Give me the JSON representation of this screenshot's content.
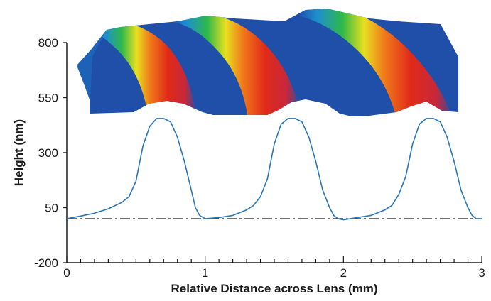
{
  "chart_data": {
    "type": "line",
    "title": "",
    "xlabel": "Relative Distance across Lens (mm)",
    "ylabel": "Height (nm)",
    "xlim": [
      0,
      3
    ],
    "ylim": [
      -200,
      800
    ],
    "x_ticks": [
      "0",
      "1",
      "2",
      "3"
    ],
    "y_ticks": [
      "800",
      "550",
      "300",
      "50",
      "-200"
    ],
    "y_tick_values": [
      800,
      550,
      300,
      50,
      -200
    ],
    "baseline": {
      "y": 0,
      "style": "dash-dot"
    },
    "grid": false,
    "legend": "none",
    "series": [
      {
        "color": "#2a76b8",
        "x": [
          0.0,
          0.1,
          0.2,
          0.3,
          0.4,
          0.45,
          0.5,
          0.55,
          0.6,
          0.65,
          0.7,
          0.75,
          0.8,
          0.85,
          0.9,
          0.93,
          0.96,
          1.0,
          1.1,
          1.2,
          1.3,
          1.35,
          1.4,
          1.45,
          1.5,
          1.55,
          1.6,
          1.65,
          1.7,
          1.75,
          1.8,
          1.85,
          1.9,
          1.93,
          1.96,
          2.0,
          2.1,
          2.2,
          2.3,
          2.35,
          2.4,
          2.45,
          2.5,
          2.55,
          2.6,
          2.65,
          2.7,
          2.75,
          2.8,
          2.85,
          2.9,
          2.93,
          2.96,
          3.0
        ],
        "y": [
          0,
          12,
          25,
          45,
          75,
          100,
          170,
          330,
          420,
          455,
          455,
          440,
          370,
          260,
          130,
          50,
          15,
          0,
          5,
          15,
          40,
          60,
          100,
          180,
          340,
          430,
          455,
          455,
          440,
          370,
          260,
          130,
          50,
          15,
          0,
          -5,
          5,
          15,
          40,
          60,
          110,
          190,
          340,
          430,
          455,
          455,
          440,
          370,
          260,
          130,
          50,
          15,
          0,
          0
        ]
      }
    ],
    "surface_inset": {
      "description_colors": [
        "#1f4fa8",
        "#1d8fd0",
        "#2fb84a",
        "#e8e020",
        "#f07a1a",
        "#e02a18"
      ],
      "ridges": 3
    }
  }
}
